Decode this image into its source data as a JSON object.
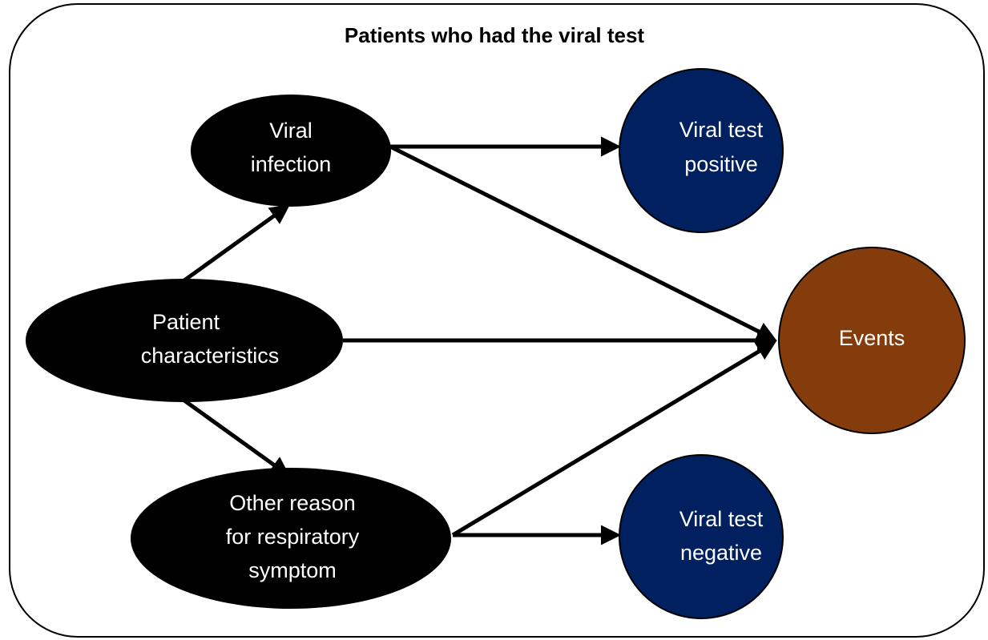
{
  "title": "Patients who had the viral test",
  "nodes": [
    {
      "label": [
        "Viral",
        "infection"
      ]
    },
    {
      "label": [
        "Viral test",
        "positive"
      ]
    },
    {
      "label": [
        "Patient",
        "characteristics"
      ]
    },
    {
      "label": [
        "Events"
      ]
    },
    {
      "label": [
        "Other reason",
        "for respiratory",
        "symptom"
      ]
    },
    {
      "label": [
        "Viral test",
        "negative"
      ]
    }
  ]
}
